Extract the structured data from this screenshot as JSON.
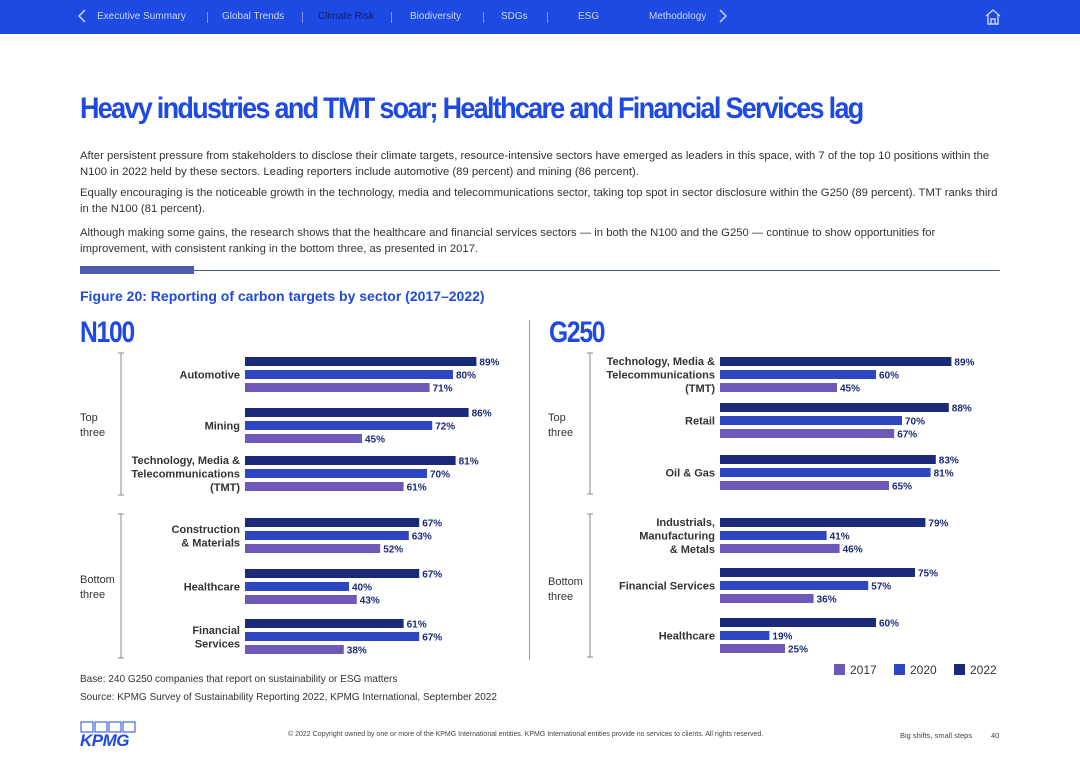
{
  "nav": {
    "items": [
      {
        "label": "Executive Summary",
        "active": false
      },
      {
        "label": "Global Trends",
        "active": false
      },
      {
        "label": "Climate Risk",
        "active": true
      },
      {
        "label": "Biodiversity",
        "active": false
      },
      {
        "label": "SDGs",
        "active": false
      },
      {
        "label": "ESG",
        "active": false
      },
      {
        "label": "Methodology",
        "active": false
      }
    ],
    "background": "#1e49e2"
  },
  "page": {
    "title": "Heavy industries and TMT soar; Healthcare and Financial Services lag",
    "paragraphs": [
      "After persistent pressure from stakeholders to disclose their climate targets, resource-intensive sectors have emerged as leaders in this space, with 7 of the top 10 positions within the N100 in 2022 held by these sectors. Leading reporters include automotive (89 percent) and mining (86 percent).",
      "Equally encouraging is the noticeable growth in the technology, media and telecommunications sector, taking top spot in sector disclosure within the G250 (89 percent). TMT ranks third in the N100 (81 percent).",
      "Although making some gains, the research shows that the healthcare and financial services sectors — in both the N100 and the G250 — continue to show opportunities for improvement, with consistent ranking in the bottom three, as presented in 2017."
    ],
    "figure_title": "Figure 20: Reporting of carbon targets by sector (2017–2022)",
    "base_note": "Base: 240 G250 companies that report on sustainability or ESG matters",
    "source_note": "Source: KPMG Survey of Sustainability Reporting 2022, KPMG International, September 2022",
    "copyright": "© 2022 Copyright owned by one or more of the KPMG International entities. KPMG International entities provide no services to clients. All rights reserved.",
    "footer_tagline": "Big shifts, small steps",
    "page_number": "40",
    "logo_text": "KPMG"
  },
  "chart_data": [
    {
      "type": "bar",
      "orientation": "horizontal",
      "title": "N100",
      "groups": [
        {
          "label": "Top three",
          "categories": [
            "Automotive",
            "Mining",
            "Technology, Media & Telecommunications (TMT)"
          ]
        },
        {
          "label": "Bottom three",
          "categories": [
            "Construction & Materials",
            "Healthcare",
            "Financial Services"
          ]
        }
      ],
      "category_lines": [
        [
          "Automotive"
        ],
        [
          "Mining"
        ],
        [
          "Technology, Media &",
          "Telecommunications",
          "(TMT)"
        ],
        [
          "Construction",
          "& Materials"
        ],
        [
          "Healthcare"
        ],
        [
          "Financial",
          "Services"
        ]
      ],
      "series": [
        {
          "name": "2022",
          "values": [
            89,
            86,
            81,
            67,
            67,
            61
          ]
        },
        {
          "name": "2020",
          "values": [
            80,
            72,
            70,
            63,
            40,
            67
          ]
        },
        {
          "name": "2017",
          "values": [
            71,
            45,
            61,
            52,
            43,
            38
          ]
        }
      ],
      "value_suffix": "%",
      "xlim": [
        0,
        100
      ]
    },
    {
      "type": "bar",
      "orientation": "horizontal",
      "title": "G250",
      "groups": [
        {
          "label": "Top three",
          "categories": [
            "Technology, Media & Telecommunications (TMT)",
            "Retail",
            "Oil & Gas"
          ]
        },
        {
          "label": "Bottom three",
          "categories": [
            "Industrials, Manufacturing & Metals",
            "Financial Services",
            "Healthcare"
          ]
        }
      ],
      "category_lines": [
        [
          "Technology, Media &",
          "Telecommunications",
          "(TMT)"
        ],
        [
          "Retail"
        ],
        [
          "Oil & Gas"
        ],
        [
          "Industrials,",
          "Manufacturing",
          "& Metals"
        ],
        [
          "Financial Services"
        ],
        [
          "Healthcare"
        ]
      ],
      "series": [
        {
          "name": "2022",
          "values": [
            89,
            88,
            83,
            79,
            75,
            60
          ]
        },
        {
          "name": "2020",
          "values": [
            60,
            70,
            81,
            41,
            57,
            19
          ]
        },
        {
          "name": "2017",
          "values": [
            45,
            67,
            65,
            46,
            36,
            25
          ]
        }
      ],
      "value_suffix": "%",
      "xlim": [
        0,
        100
      ]
    }
  ],
  "legend": [
    {
      "name": "2017",
      "color": "#6e59b8"
    },
    {
      "name": "2020",
      "color": "#2f46c2"
    },
    {
      "name": "2022",
      "color": "#1b2a78"
    }
  ],
  "series_colors": {
    "2022": "#1b2a78",
    "2020": "#2f46c2",
    "2017": "#6e59b8"
  }
}
